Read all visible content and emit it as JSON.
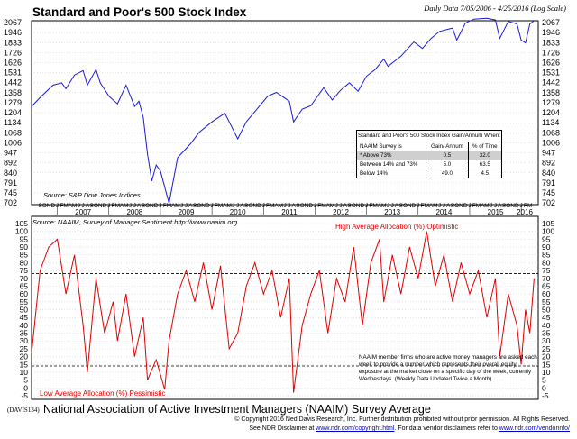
{
  "header": {
    "title": "Standard and Poor's 500 Stock Index",
    "subtitle": "Daily Data 7/05/2006 - 4/25/2016 (Log Scale)"
  },
  "footer": {
    "code": "(DAVIS134)",
    "title": "National Association of Active Investment Managers (NAAIM) Survey Average",
    "copyright": "© Copyright 2016 Ned Davis Research, Inc.  Further distribution prohibited without prior permission.  All Rights Reserved.",
    "disclaimer_pre": "See NDR Disclaimer at",
    "disclaimer_link1": "www.ndr.com/copyright.html",
    "disclaimer_mid": ". For data vendor disclaimers refer to",
    "disclaimer_link2": "www.ndr.com/vendorinfo/"
  },
  "stats_table": {
    "title": "Standard and Poor's 500 Stock Index Gain/Annum When:",
    "col_headers": [
      "NAAIM Survey is",
      "Gain/ Annum",
      "% of Time"
    ],
    "rows": [
      {
        "label": "* Above 73%",
        "gain": "0.5",
        "pct": "32.0",
        "selected": true
      },
      {
        "label": "Between 14% and 73%",
        "gain": "5.0",
        "pct": "63.5",
        "selected": false
      },
      {
        "label": "Below 14%",
        "gain": "49.0",
        "pct": "4.5",
        "selected": false
      }
    ]
  },
  "colors": {
    "spx_line": "#1a1ad9",
    "naaim_line": "#e00000",
    "ref_line": "#000000"
  },
  "chart_data": [
    {
      "type": "line",
      "title": "Standard and Poor's 500 Stock Index",
      "subtitle": "Daily Data 7/05/2006 - 4/25/2016 (Log Scale)",
      "source": "Source: S&P Dow Jones Indices",
      "y_scale": "log",
      "y_ticks": [
        702,
        745,
        791,
        840,
        892,
        947,
        1006,
        1068,
        1134,
        1204,
        1279,
        1358,
        1442,
        1531,
        1626,
        1726,
        1833,
        1946,
        2067
      ],
      "ylim": [
        702,
        2067
      ],
      "x_month_labels": [
        "S",
        "O",
        "N",
        "D",
        "J",
        "F",
        "M",
        "A",
        "M",
        "J",
        "J",
        "A",
        "S",
        "O",
        "N",
        "D",
        "J",
        "F",
        "M",
        "A",
        "M",
        "J",
        "J",
        "A",
        "S",
        "O",
        "N",
        "D",
        "J",
        "F",
        "M",
        "A",
        "M",
        "J",
        "J",
        "A",
        "S",
        "O",
        "N",
        "D",
        "J",
        "F",
        "M",
        "A",
        "M",
        "J",
        "J",
        "A",
        "S",
        "O",
        "N",
        "D",
        "J",
        "F",
        "M",
        "A",
        "M",
        "J",
        "J",
        "A",
        "S",
        "O",
        "N",
        "D",
        "J",
        "F",
        "M",
        "A",
        "M",
        "J",
        "J",
        "A",
        "S",
        "O",
        "N",
        "D",
        "J",
        "F",
        "M",
        "A",
        "M",
        "J",
        "J",
        "A",
        "S",
        "O",
        "N",
        "D",
        "J",
        "F",
        "M",
        "A",
        "M",
        "J",
        "J",
        "A",
        "S",
        "O",
        "N",
        "D",
        "J",
        "F",
        "M",
        "A",
        "M",
        "J",
        "J",
        "A",
        "S",
        "O",
        "N",
        "D",
        "J",
        "F",
        "M"
      ],
      "x_year_labels": [
        "2007",
        "2008",
        "2009",
        "2010",
        "2011",
        "2012",
        "2013",
        "2014",
        "2015",
        "2016"
      ],
      "grid": true,
      "series": [
        {
          "x": [
            "2006-07",
            "2006-09",
            "2006-12",
            "2007-02",
            "2007-03",
            "2007-05",
            "2007-07",
            "2007-08",
            "2007-10",
            "2007-11",
            "2008-01",
            "2008-03",
            "2008-05",
            "2008-07",
            "2008-08",
            "2008-09",
            "2008-10",
            "2008-11",
            "2008-12",
            "2009-01",
            "2009-03",
            "2009-05",
            "2009-08",
            "2009-10",
            "2010-01",
            "2010-04",
            "2010-07",
            "2010-09",
            "2010-12",
            "2011-02",
            "2011-04",
            "2011-07",
            "2011-08",
            "2011-10",
            "2011-12",
            "2012-03",
            "2012-05",
            "2012-07",
            "2012-09",
            "2012-11",
            "2013-01",
            "2013-03",
            "2013-05",
            "2013-06",
            "2013-09",
            "2013-12",
            "2014-02",
            "2014-04",
            "2014-06",
            "2014-09",
            "2014-10",
            "2014-12",
            "2015-02",
            "2015-05",
            "2015-07",
            "2015-08",
            "2015-10",
            "2015-12",
            "2016-01",
            "2016-02",
            "2016-03",
            "2016-04"
          ],
          "values": [
            1250,
            1320,
            1420,
            1440,
            1390,
            1510,
            1550,
            1420,
            1560,
            1440,
            1330,
            1270,
            1420,
            1250,
            1290,
            1170,
            940,
            800,
            880,
            850,
            700,
            920,
            1000,
            1070,
            1140,
            1200,
            1030,
            1140,
            1250,
            1330,
            1360,
            1290,
            1140,
            1230,
            1255,
            1400,
            1300,
            1380,
            1440,
            1370,
            1500,
            1560,
            1660,
            1590,
            1690,
            1840,
            1770,
            1880,
            1960,
            2000,
            1860,
            2060,
            2110,
            2120,
            2100,
            1880,
            2080,
            2050,
            1860,
            1830,
            2050,
            2090
          ]
        }
      ]
    },
    {
      "type": "line",
      "title": "National Association of Active Investment Managers (NAAIM) Survey Average",
      "source": "Source: NAAIM, Survey of Manager Sentiment http://www.naaim.org",
      "y_ticks": [
        -5,
        0,
        5,
        10,
        15,
        20,
        25,
        30,
        35,
        40,
        45,
        50,
        55,
        60,
        65,
        70,
        75,
        80,
        85,
        90,
        95,
        100,
        105
      ],
      "ylim": [
        -5,
        105
      ],
      "reference_lines": [
        73,
        14
      ],
      "annotations": [
        "High Average Allocation (%) Optimistic",
        "Low Average Allocation (%) Pessimistic"
      ],
      "note": "NAAIM member firms who are active money managers are asked each week to provide a number which represents their overall equity exposure at the market close on a specific day of the week, currently Wednesdays. (Weekly Data Updated Twice a Month)",
      "x_month_labels": [
        "S",
        "O",
        "N",
        "D",
        "J",
        "F",
        "M",
        "A",
        "M",
        "J",
        "J",
        "A",
        "S",
        "O",
        "N",
        "D",
        "J",
        "F",
        "M",
        "A",
        "M",
        "J",
        "J",
        "A",
        "S",
        "O",
        "N",
        "D",
        "J",
        "F",
        "M",
        "A",
        "M",
        "J",
        "J",
        "A",
        "S",
        "O",
        "N",
        "D",
        "J",
        "F",
        "M",
        "A",
        "M",
        "J",
        "J",
        "A",
        "S",
        "O",
        "N",
        "D",
        "J",
        "F",
        "M",
        "A",
        "M",
        "J",
        "J",
        "A",
        "S",
        "O",
        "N",
        "D",
        "J",
        "F",
        "M",
        "A",
        "M",
        "J",
        "J",
        "A",
        "S",
        "O",
        "N",
        "D",
        "J",
        "F",
        "M",
        "A",
        "M",
        "J",
        "J",
        "A",
        "S",
        "O",
        "N",
        "D",
        "J",
        "F",
        "M",
        "A",
        "M",
        "J",
        "J",
        "A",
        "S",
        "O",
        "N",
        "D",
        "J",
        "F",
        "M",
        "A",
        "M",
        "J",
        "J",
        "A",
        "S",
        "O",
        "N",
        "D",
        "J",
        "F",
        "M"
      ],
      "series": [
        {
          "x": [
            "2006-07",
            "2006-09",
            "2006-11",
            "2007-01",
            "2007-03",
            "2007-05",
            "2007-07",
            "2007-08",
            "2007-10",
            "2007-12",
            "2008-02",
            "2008-03",
            "2008-05",
            "2008-07",
            "2008-09",
            "2008-10",
            "2008-12",
            "2009-02",
            "2009-03",
            "2009-05",
            "2009-07",
            "2009-09",
            "2009-11",
            "2010-01",
            "2010-03",
            "2010-05",
            "2010-07",
            "2010-09",
            "2010-11",
            "2011-01",
            "2011-03",
            "2011-05",
            "2011-07",
            "2011-08",
            "2011-10",
            "2011-12",
            "2012-02",
            "2012-04",
            "2012-06",
            "2012-08",
            "2012-10",
            "2012-12",
            "2013-02",
            "2013-04",
            "2013-05",
            "2013-07",
            "2013-09",
            "2013-11",
            "2014-01",
            "2014-03",
            "2014-05",
            "2014-07",
            "2014-09",
            "2014-11",
            "2015-01",
            "2015-03",
            "2015-05",
            "2015-07",
            "2015-08",
            "2015-10",
            "2015-12",
            "2016-01",
            "2016-02",
            "2016-03",
            "2016-04"
          ],
          "values": [
            22,
            75,
            90,
            95,
            60,
            85,
            40,
            10,
            70,
            35,
            55,
            30,
            60,
            20,
            45,
            5,
            18,
            -1,
            30,
            60,
            75,
            55,
            80,
            50,
            78,
            25,
            35,
            65,
            80,
            60,
            75,
            45,
            70,
            -3,
            40,
            60,
            75,
            35,
            70,
            55,
            90,
            40,
            80,
            95,
            55,
            85,
            60,
            90,
            70,
            100,
            65,
            85,
            55,
            80,
            60,
            75,
            45,
            70,
            20,
            60,
            40,
            15,
            50,
            35,
            70
          ]
        }
      ]
    }
  ]
}
